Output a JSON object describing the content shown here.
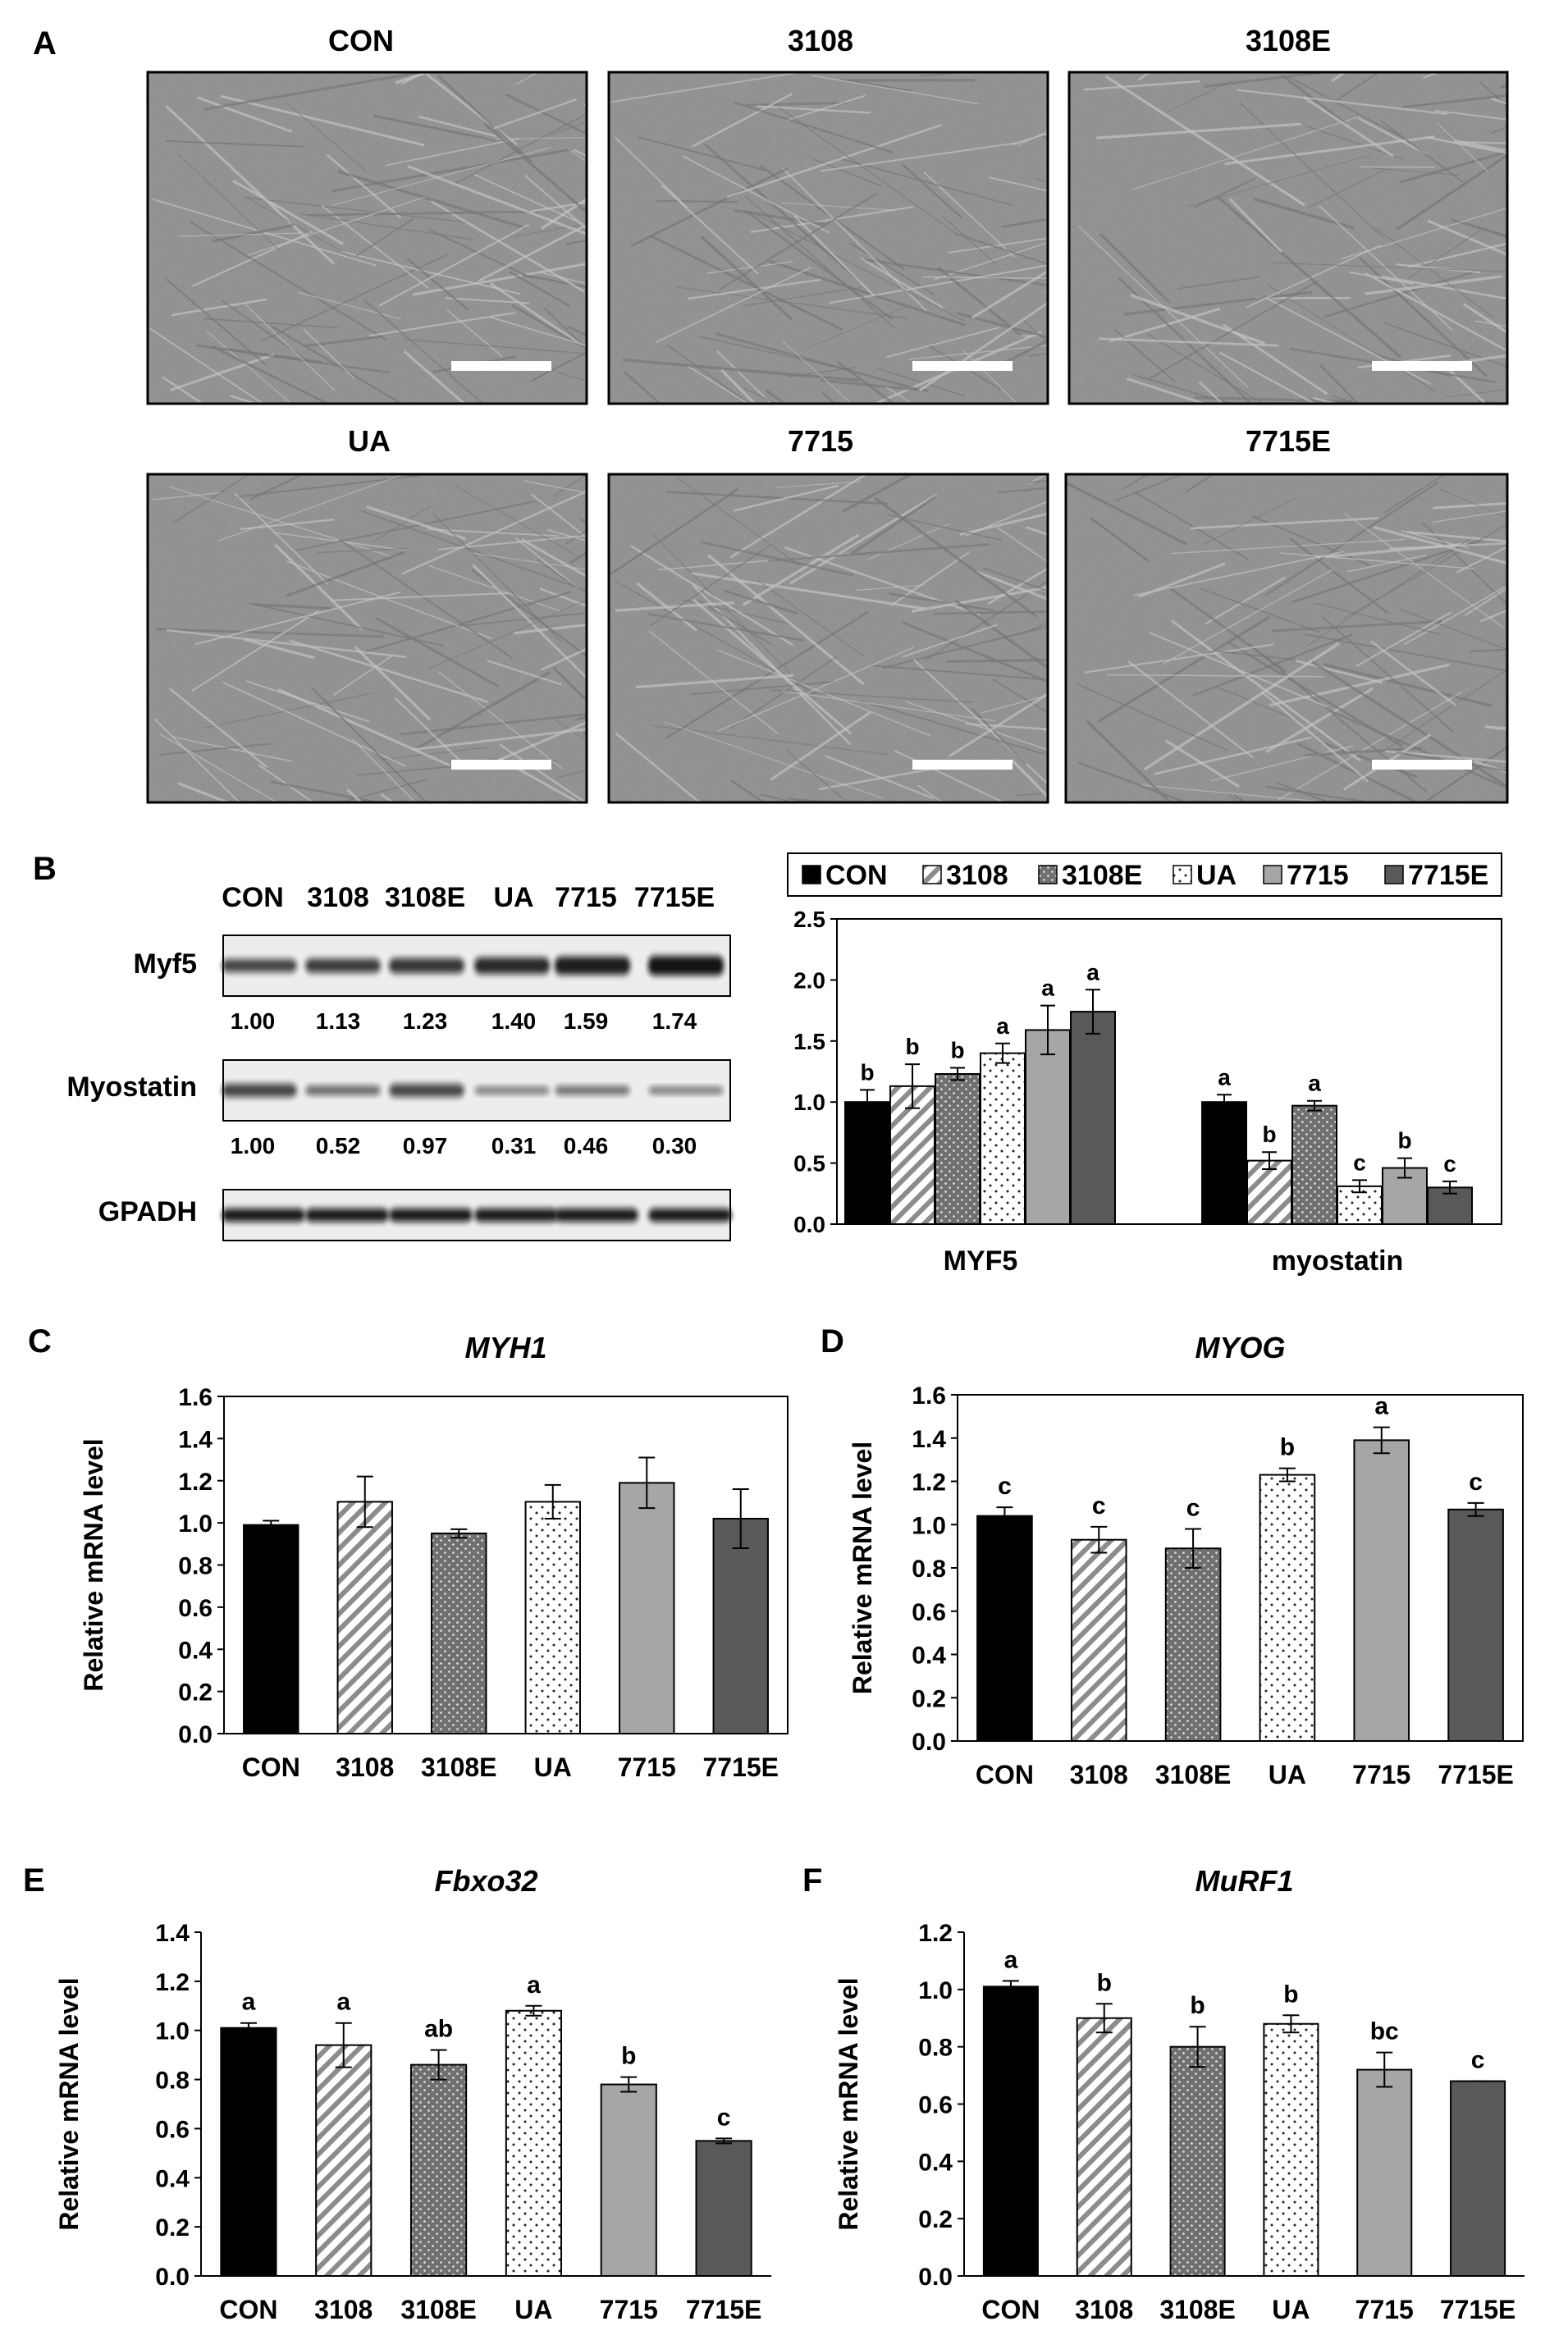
{
  "panel_letters": [
    "A",
    "B",
    "C",
    "D",
    "E",
    "F"
  ],
  "panel_a": {
    "labels": [
      "CON",
      "3108",
      "3108E",
      "UA",
      "7715",
      "7715E"
    ]
  },
  "panel_b_blot": {
    "lane_labels": [
      "CON",
      "3108",
      "3108E",
      "UA",
      "7715",
      "7715E"
    ],
    "rows": [
      {
        "label": "Myf5",
        "values": [
          "1.00",
          "1.13",
          "1.23",
          "1.40",
          "1.59",
          "1.74"
        ],
        "intensity": [
          1.0,
          1.13,
          1.23,
          1.4,
          1.59,
          1.74
        ]
      },
      {
        "label": "Myostatin",
        "values": [
          "1.00",
          "0.52",
          "0.97",
          "0.31",
          "0.46",
          "0.30"
        ],
        "intensity": [
          1.0,
          0.52,
          0.97,
          0.31,
          0.46,
          0.3
        ]
      },
      {
        "label": "GPADH",
        "values": [],
        "intensity": [
          1.0,
          1.0,
          1.0,
          1.0,
          1.0,
          1.0
        ]
      }
    ]
  },
  "series_styles": [
    {
      "name": "CON",
      "pattern": "solid",
      "color": "#000000"
    },
    {
      "name": "3108",
      "pattern": "diagonal",
      "color": "#8c8c8c"
    },
    {
      "name": "3108E",
      "pattern": "dots-dark",
      "color": "#707070"
    },
    {
      "name": "UA",
      "pattern": "dots-light",
      "color": "#ffffff"
    },
    {
      "name": "7715",
      "pattern": "solid",
      "color": "#a6a6a6"
    },
    {
      "name": "7715E",
      "pattern": "solid",
      "color": "#595959"
    }
  ],
  "chart_data": [
    {
      "id": "B",
      "type": "bar",
      "title": "",
      "ylabel": "",
      "ylim": [
        0,
        2.5
      ],
      "yticks": [
        "0.0",
        "0.5",
        "1.0",
        "1.5",
        "2.0",
        "2.5"
      ],
      "groups": [
        "MYF5",
        "myostatin"
      ],
      "legend": [
        "CON",
        "3108",
        "3108E",
        "UA",
        "7715",
        "7715E"
      ],
      "series": [
        {
          "name": "CON",
          "values": [
            1.0,
            1.0
          ],
          "errors": [
            0.1,
            0.06
          ],
          "sig": [
            "b",
            "a"
          ]
        },
        {
          "name": "3108",
          "values": [
            1.13,
            0.52
          ],
          "errors": [
            0.18,
            0.07
          ],
          "sig": [
            "b",
            "b"
          ]
        },
        {
          "name": "3108E",
          "values": [
            1.23,
            0.97
          ],
          "errors": [
            0.05,
            0.04
          ],
          "sig": [
            "b",
            "a"
          ]
        },
        {
          "name": "UA",
          "values": [
            1.4,
            0.31
          ],
          "errors": [
            0.08,
            0.05
          ],
          "sig": [
            "a",
            "c"
          ]
        },
        {
          "name": "7715",
          "values": [
            1.59,
            0.46
          ],
          "errors": [
            0.2,
            0.08
          ],
          "sig": [
            "a",
            "b"
          ]
        },
        {
          "name": "7715E",
          "values": [
            1.74,
            0.3
          ],
          "errors": [
            0.18,
            0.05
          ],
          "sig": [
            "a",
            "c"
          ]
        }
      ]
    },
    {
      "id": "C",
      "type": "bar",
      "title": "MYH1",
      "ylabel": "Relative mRNA level",
      "ylim": [
        0,
        1.6
      ],
      "yticks": [
        "0.0",
        "0.2",
        "0.4",
        "0.6",
        "0.8",
        "1.0",
        "1.2",
        "1.4",
        "1.6"
      ],
      "categories": [
        "CON",
        "3108",
        "3108E",
        "UA",
        "7715",
        "7715E"
      ],
      "values": [
        0.99,
        1.1,
        0.95,
        1.1,
        1.19,
        1.02
      ],
      "errors": [
        0.02,
        0.12,
        0.02,
        0.08,
        0.12,
        0.14
      ],
      "sig": [
        "",
        "",
        "",
        "",
        "",
        ""
      ]
    },
    {
      "id": "D",
      "type": "bar",
      "title": "MYOG",
      "ylabel": "Relative mRNA level",
      "ylim": [
        0,
        1.6
      ],
      "yticks": [
        "0.0",
        "0.2",
        "0.4",
        "0.6",
        "0.8",
        "1.0",
        "1.2",
        "1.4",
        "1.6"
      ],
      "categories": [
        "CON",
        "3108",
        "3108E",
        "UA",
        "7715",
        "7715E"
      ],
      "values": [
        1.04,
        0.93,
        0.89,
        1.23,
        1.39,
        1.07
      ],
      "errors": [
        0.04,
        0.06,
        0.09,
        0.03,
        0.06,
        0.03
      ],
      "sig": [
        "c",
        "c",
        "c",
        "b",
        "a",
        "c"
      ]
    },
    {
      "id": "E",
      "type": "bar",
      "title": "Fbxo32",
      "ylabel": "Relative mRNA level",
      "ylim": [
        0,
        1.4
      ],
      "yticks": [
        "0.0",
        "0.2",
        "0.4",
        "0.6",
        "0.8",
        "1.0",
        "1.2",
        "1.4"
      ],
      "categories": [
        "CON",
        "3108",
        "3108E",
        "UA",
        "7715",
        "7715E"
      ],
      "values": [
        1.01,
        0.94,
        0.86,
        1.08,
        0.78,
        0.55
      ],
      "errors": [
        0.02,
        0.09,
        0.06,
        0.02,
        0.03,
        0.01
      ],
      "sig": [
        "a",
        "a",
        "ab",
        "a",
        "b",
        "c"
      ]
    },
    {
      "id": "F",
      "type": "bar",
      "title": "MuRF1",
      "ylabel": "Relative mRNA level",
      "ylim": [
        0,
        1.2
      ],
      "yticks": [
        "0.0",
        "0.2",
        "0.4",
        "0.6",
        "0.8",
        "1.0",
        "1.2"
      ],
      "categories": [
        "CON",
        "3108",
        "3108E",
        "UA",
        "7715",
        "7715E"
      ],
      "values": [
        1.01,
        0.9,
        0.8,
        0.88,
        0.72,
        0.68
      ],
      "errors": [
        0.02,
        0.05,
        0.07,
        0.03,
        0.06,
        0.0
      ],
      "sig": [
        "a",
        "b",
        "b",
        "b",
        "bc",
        "c"
      ]
    }
  ]
}
